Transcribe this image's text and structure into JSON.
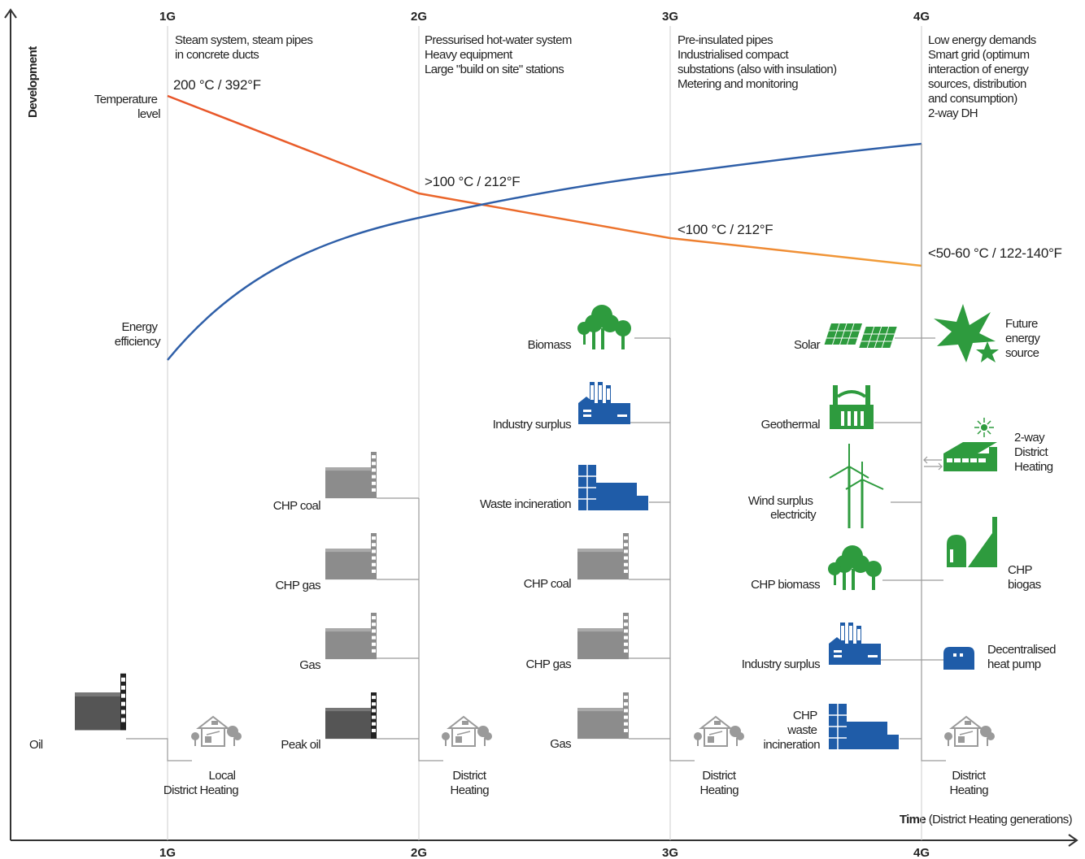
{
  "axes": {
    "y_label": "Development",
    "x_label_bold": "Time",
    "x_label_rest": " (District Heating generations)"
  },
  "generations": [
    "1G",
    "2G",
    "3G",
    "4G"
  ],
  "generation_notes": [
    [
      "Steam system, steam pipes",
      "in concrete ducts"
    ],
    [
      "Pressurised hot-water system",
      "Heavy equipment",
      "Large \"build on site\" stations"
    ],
    [
      "Pre-insulated pipes",
      "Industrialised compact",
      "substations (also with insulation)",
      "Metering and monitoring"
    ],
    [
      "Low energy demands",
      "Smart grid (optimum",
      "interaction of energy",
      "sources, distribution",
      "and consumption)",
      "2-way DH"
    ]
  ],
  "curves": {
    "temperature_label": [
      "Temperature",
      "level"
    ],
    "efficiency_label": [
      "Energy",
      "efficiency"
    ],
    "temperature_points": [
      {
        "gen": "1G",
        "text": "200 °C / 392°F"
      },
      {
        "gen": "2G",
        "text": ">100 °C / 212°F"
      },
      {
        "gen": "3G",
        "text": "<100 °C / 212°F"
      },
      {
        "gen": "4G",
        "text": "<50-60 °C / 122-140°F"
      }
    ],
    "temperature_color": "#e8552a",
    "temperature_color_end": "#f2a23a",
    "efficiency_color": "#2f5fa8"
  },
  "colors": {
    "green": "#2e9b3e",
    "blue": "#1f5ca8",
    "gray": "#8c8c8c",
    "dark_gray": "#555555",
    "house": "#9a9a9a",
    "line": "#9a9a9a"
  },
  "sources": {
    "g1": [
      {
        "label": "Oil",
        "icon": "oil-plant-icon"
      }
    ],
    "g2": [
      {
        "label": "CHP coal",
        "icon": "chp-coal-plant-icon"
      },
      {
        "label": "CHP gas",
        "icon": "chp-gas-plant-icon"
      },
      {
        "label": "Gas",
        "icon": "gas-plant-icon"
      },
      {
        "label": "Peak oil",
        "icon": "peak-oil-plant-icon"
      }
    ],
    "g3": [
      {
        "label": "Biomass",
        "icon": "trees-icon"
      },
      {
        "label": "Industry surplus",
        "icon": "industry-icon"
      },
      {
        "label": "Waste incineration",
        "icon": "waste-incineration-icon"
      },
      {
        "label": "CHP coal",
        "icon": "chp-coal-plant-icon"
      },
      {
        "label": "CHP gas",
        "icon": "chp-gas-plant-icon"
      },
      {
        "label": "Gas",
        "icon": "gas-plant-icon"
      }
    ],
    "g4_left": [
      {
        "label": "Solar",
        "icon": "solar-panels-icon"
      },
      {
        "label": "Geothermal",
        "icon": "geothermal-plant-icon"
      },
      {
        "label": [
          "Wind surplus",
          "electricity"
        ],
        "icon": "wind-turbines-icon"
      },
      {
        "label": "CHP biomass",
        "icon": "trees-icon"
      },
      {
        "label": "Industry surplus",
        "icon": "industry-icon"
      },
      {
        "label": [
          "CHP",
          "waste",
          "incineration"
        ],
        "icon": "waste-incineration-icon"
      }
    ],
    "g4_right": [
      {
        "label": [
          "Future",
          "energy",
          "source"
        ],
        "icon": "star-burst-icon"
      },
      {
        "label": [
          "2-way",
          "District",
          "Heating"
        ],
        "icon": "greenhouse-icon"
      },
      {
        "label": [
          "CHP",
          "biogas"
        ],
        "icon": "biogas-plant-icon"
      },
      {
        "label": [
          "Decentralised",
          "heat pump"
        ],
        "icon": "heat-pump-icon"
      }
    ]
  },
  "outputs": [
    [
      "Local",
      "District Heating"
    ],
    [
      "District",
      "Heating"
    ],
    [
      "District",
      "Heating"
    ],
    [
      "District",
      "Heating"
    ]
  ]
}
